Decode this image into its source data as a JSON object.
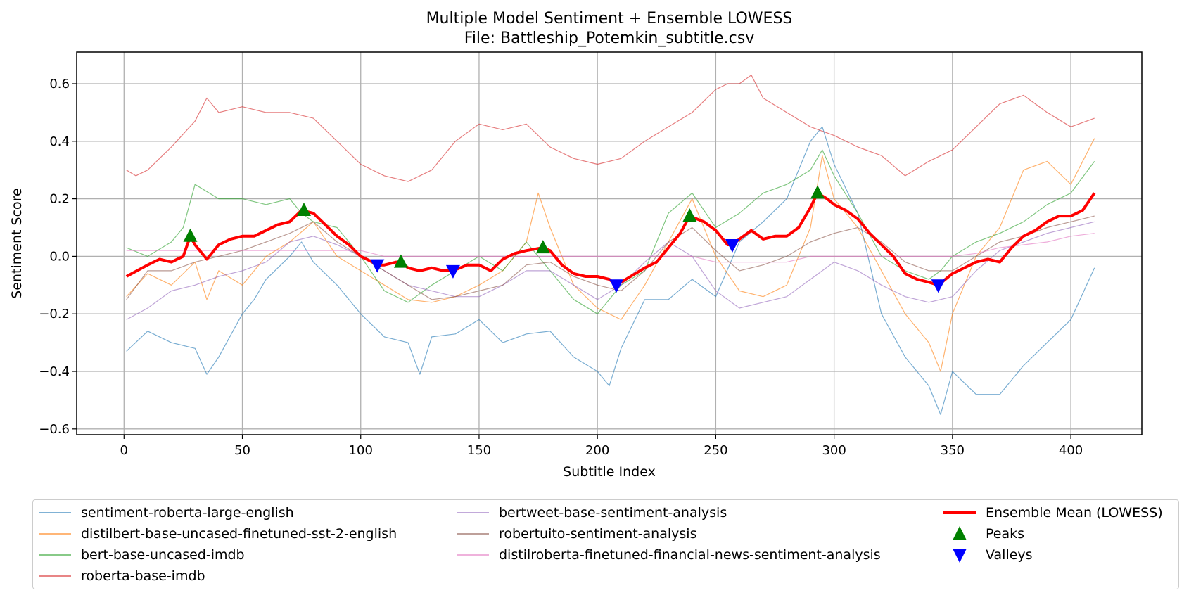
{
  "chart_data": {
    "type": "line",
    "title": "Multiple Model Sentiment + Ensemble LOWESS",
    "subtitle": "File: Battleship_Potemkin_subtitle.csv",
    "xlabel": "Subtitle Index",
    "ylabel": "Sentiment Score",
    "xlim": [
      -20,
      430
    ],
    "ylim": [
      -0.62,
      0.71
    ],
    "xticks": [
      "0",
      "50",
      "100",
      "150",
      "200",
      "250",
      "300",
      "350",
      "400"
    ],
    "yticks": [
      "−0.6",
      "−0.4",
      "−0.2",
      "0.0",
      "0.2",
      "0.4",
      "0.6"
    ],
    "grid": true,
    "legend_placement": "below",
    "series": [
      {
        "name": "sentiment-roberta-large-english",
        "color": "#1f77b4",
        "x": [
          1,
          10,
          20,
          30,
          35,
          40,
          50,
          55,
          60,
          70,
          75,
          80,
          90,
          100,
          110,
          120,
          125,
          130,
          140,
          150,
          160,
          170,
          180,
          190,
          200,
          205,
          210,
          220,
          230,
          240,
          250,
          260,
          270,
          280,
          290,
          295,
          300,
          310,
          320,
          330,
          340,
          345,
          350,
          360,
          370,
          380,
          390,
          400,
          410
        ],
        "y": [
          -0.33,
          -0.26,
          -0.3,
          -0.32,
          -0.41,
          -0.35,
          -0.2,
          -0.15,
          -0.08,
          0.0,
          0.05,
          -0.02,
          -0.1,
          -0.2,
          -0.28,
          -0.3,
          -0.41,
          -0.28,
          -0.27,
          -0.22,
          -0.3,
          -0.27,
          -0.26,
          -0.35,
          -0.4,
          -0.45,
          -0.32,
          -0.15,
          -0.15,
          -0.08,
          -0.14,
          0.05,
          0.12,
          0.2,
          0.4,
          0.45,
          0.32,
          0.15,
          -0.2,
          -0.35,
          -0.45,
          -0.55,
          -0.4,
          -0.48,
          -0.48,
          -0.38,
          -0.3,
          -0.22,
          -0.04
        ]
      },
      {
        "name": "distilbert-base-uncased-finetuned-sst-2-english",
        "color": "#ff7f0e",
        "x": [
          1,
          10,
          20,
          30,
          35,
          40,
          50,
          60,
          70,
          80,
          90,
          100,
          110,
          120,
          130,
          140,
          150,
          160,
          170,
          175,
          180,
          190,
          200,
          210,
          220,
          230,
          240,
          250,
          260,
          270,
          280,
          290,
          295,
          300,
          310,
          320,
          330,
          340,
          345,
          350,
          360,
          370,
          380,
          390,
          400,
          410
        ],
        "y": [
          -0.14,
          -0.06,
          -0.1,
          -0.02,
          -0.15,
          -0.05,
          -0.1,
          0.0,
          0.05,
          0.12,
          0.0,
          -0.05,
          -0.1,
          -0.15,
          -0.16,
          -0.14,
          -0.1,
          -0.05,
          0.05,
          0.22,
          0.1,
          -0.1,
          -0.18,
          -0.22,
          -0.1,
          0.05,
          0.2,
          0.0,
          -0.12,
          -0.14,
          -0.1,
          0.1,
          0.35,
          0.2,
          0.1,
          -0.05,
          -0.2,
          -0.3,
          -0.4,
          -0.2,
          0.0,
          0.1,
          0.3,
          0.33,
          0.25,
          0.41
        ]
      },
      {
        "name": "bert-base-uncased-imdb",
        "color": "#2ca02c",
        "x": [
          1,
          10,
          20,
          25,
          30,
          40,
          50,
          60,
          70,
          75,
          80,
          90,
          100,
          110,
          120,
          130,
          140,
          150,
          160,
          170,
          180,
          190,
          200,
          210,
          220,
          230,
          240,
          250,
          260,
          270,
          280,
          290,
          295,
          300,
          310,
          320,
          330,
          340,
          345,
          350,
          360,
          370,
          380,
          390,
          400,
          410
        ],
        "y": [
          0.03,
          0.0,
          0.05,
          0.1,
          0.25,
          0.2,
          0.2,
          0.18,
          0.2,
          0.15,
          0.12,
          0.1,
          0.0,
          -0.12,
          -0.16,
          -0.1,
          -0.05,
          0.0,
          -0.05,
          0.05,
          -0.05,
          -0.15,
          -0.2,
          -0.1,
          -0.05,
          0.15,
          0.22,
          0.1,
          0.15,
          0.22,
          0.25,
          0.3,
          0.37,
          0.28,
          0.15,
          0.0,
          -0.05,
          -0.08,
          -0.05,
          0.0,
          0.05,
          0.08,
          0.12,
          0.18,
          0.22,
          0.33
        ]
      },
      {
        "name": "roberta-base-imdb",
        "color": "#d62728",
        "x": [
          1,
          5,
          10,
          20,
          30,
          35,
          40,
          50,
          60,
          70,
          80,
          90,
          100,
          110,
          120,
          130,
          140,
          150,
          160,
          170,
          180,
          190,
          200,
          210,
          220,
          230,
          240,
          250,
          255,
          260,
          265,
          270,
          280,
          290,
          300,
          310,
          320,
          330,
          340,
          350,
          360,
          370,
          380,
          390,
          400,
          410
        ],
        "y": [
          0.3,
          0.28,
          0.3,
          0.38,
          0.47,
          0.55,
          0.5,
          0.52,
          0.5,
          0.5,
          0.48,
          0.4,
          0.32,
          0.28,
          0.26,
          0.3,
          0.4,
          0.46,
          0.44,
          0.46,
          0.38,
          0.34,
          0.32,
          0.34,
          0.4,
          0.45,
          0.5,
          0.58,
          0.6,
          0.6,
          0.63,
          0.55,
          0.5,
          0.45,
          0.42,
          0.38,
          0.35,
          0.28,
          0.33,
          0.37,
          0.45,
          0.53,
          0.56,
          0.5,
          0.45,
          0.48
        ]
      },
      {
        "name": "bertweet-base-sentiment-analysis",
        "color": "#9467bd",
        "x": [
          1,
          10,
          20,
          30,
          40,
          50,
          60,
          70,
          80,
          90,
          100,
          110,
          120,
          130,
          140,
          150,
          160,
          170,
          180,
          190,
          200,
          210,
          220,
          230,
          240,
          250,
          260,
          270,
          280,
          290,
          300,
          310,
          320,
          330,
          340,
          350,
          360,
          370,
          380,
          390,
          400,
          410
        ],
        "y": [
          -0.22,
          -0.18,
          -0.12,
          -0.1,
          -0.07,
          -0.05,
          -0.02,
          0.05,
          0.07,
          0.04,
          0.0,
          -0.05,
          -0.1,
          -0.12,
          -0.14,
          -0.14,
          -0.1,
          -0.05,
          -0.05,
          -0.1,
          -0.15,
          -0.1,
          -0.02,
          0.05,
          0.0,
          -0.12,
          -0.18,
          -0.16,
          -0.14,
          -0.08,
          -0.02,
          -0.05,
          -0.1,
          -0.14,
          -0.16,
          -0.14,
          -0.05,
          0.02,
          0.05,
          0.08,
          0.1,
          0.12
        ]
      },
      {
        "name": "robertuito-sentiment-analysis",
        "color": "#8c564b",
        "x": [
          1,
          10,
          20,
          30,
          40,
          50,
          60,
          70,
          80,
          90,
          100,
          110,
          120,
          130,
          140,
          150,
          160,
          170,
          180,
          190,
          200,
          210,
          220,
          230,
          240,
          250,
          260,
          270,
          280,
          290,
          300,
          310,
          320,
          330,
          340,
          350,
          360,
          370,
          380,
          390,
          400,
          410
        ],
        "y": [
          -0.15,
          -0.05,
          -0.05,
          -0.02,
          0.0,
          0.02,
          0.05,
          0.08,
          0.12,
          0.05,
          0.0,
          -0.05,
          -0.1,
          -0.15,
          -0.14,
          -0.12,
          -0.1,
          -0.03,
          -0.02,
          -0.07,
          -0.1,
          -0.12,
          -0.05,
          0.05,
          0.1,
          0.02,
          -0.05,
          -0.03,
          0.0,
          0.05,
          0.08,
          0.1,
          0.05,
          -0.02,
          -0.05,
          -0.05,
          0.0,
          0.05,
          0.07,
          0.1,
          0.12,
          0.14
        ]
      },
      {
        "name": "distilroberta-finetuned-financial-news-sentiment-analysis",
        "color": "#e377c2",
        "x": [
          1,
          10,
          20,
          30,
          40,
          50,
          60,
          70,
          80,
          90,
          100,
          110,
          120,
          130,
          140,
          150,
          160,
          170,
          180,
          190,
          200,
          210,
          220,
          230,
          240,
          250,
          260,
          270,
          280,
          290,
          300,
          310,
          320,
          330,
          340,
          350,
          360,
          370,
          380,
          390,
          400,
          410
        ],
        "y": [
          0.02,
          0.02,
          0.02,
          0.02,
          0.02,
          0.02,
          0.02,
          0.02,
          0.02,
          0.02,
          0.02,
          0.0,
          0.0,
          0.0,
          0.0,
          0.0,
          0.0,
          0.0,
          0.0,
          0.0,
          0.0,
          0.0,
          0.0,
          0.0,
          0.0,
          -0.02,
          -0.02,
          -0.02,
          -0.02,
          0.0,
          0.0,
          0.0,
          0.0,
          0.0,
          0.0,
          0.0,
          0.01,
          0.03,
          0.04,
          0.05,
          0.07,
          0.08
        ]
      },
      {
        "name": "Ensemble Mean (LOWESS)",
        "color": "#ff0000",
        "x": [
          1,
          10,
          15,
          20,
          25,
          28,
          30,
          35,
          40,
          45,
          50,
          55,
          60,
          65,
          70,
          75,
          80,
          85,
          90,
          95,
          100,
          105,
          107,
          110,
          115,
          117,
          120,
          125,
          130,
          135,
          139,
          145,
          150,
          155,
          160,
          165,
          170,
          177,
          180,
          185,
          190,
          195,
          200,
          205,
          208,
          212,
          220,
          225,
          230,
          235,
          239,
          245,
          250,
          255,
          257,
          260,
          265,
          270,
          275,
          280,
          285,
          290,
          293,
          297,
          300,
          305,
          310,
          315,
          320,
          325,
          330,
          335,
          340,
          344,
          350,
          355,
          360,
          365,
          370,
          375,
          380,
          385,
          390,
          395,
          400,
          405,
          410
        ],
        "y": [
          -0.07,
          -0.03,
          -0.01,
          -0.02,
          0.0,
          0.07,
          0.04,
          -0.01,
          0.04,
          0.06,
          0.07,
          0.07,
          0.09,
          0.11,
          0.12,
          0.16,
          0.15,
          0.11,
          0.07,
          0.04,
          0.0,
          -0.02,
          -0.03,
          -0.03,
          -0.02,
          -0.02,
          -0.04,
          -0.05,
          -0.04,
          -0.05,
          -0.05,
          -0.03,
          -0.03,
          -0.05,
          -0.01,
          0.01,
          0.02,
          0.03,
          0.02,
          -0.03,
          -0.06,
          -0.07,
          -0.07,
          -0.08,
          -0.1,
          -0.08,
          -0.04,
          -0.02,
          0.03,
          0.08,
          0.14,
          0.12,
          0.09,
          0.04,
          0.04,
          0.06,
          0.09,
          0.06,
          0.07,
          0.07,
          0.1,
          0.17,
          0.22,
          0.2,
          0.18,
          0.16,
          0.13,
          0.08,
          0.04,
          0.0,
          -0.06,
          -0.08,
          -0.09,
          -0.1,
          -0.06,
          -0.04,
          -0.02,
          -0.01,
          -0.02,
          0.03,
          0.07,
          0.09,
          0.12,
          0.14,
          0.14,
          0.16,
          0.22
        ]
      }
    ],
    "peaks": [
      [
        28,
        0.07
      ],
      [
        76,
        0.16
      ],
      [
        117,
        -0.02
      ],
      [
        177,
        0.03
      ],
      [
        239,
        0.14
      ],
      [
        293,
        0.22
      ]
    ],
    "valleys": [
      [
        107,
        -0.03
      ],
      [
        139,
        -0.05
      ],
      [
        208,
        -0.1
      ],
      [
        257,
        0.04
      ],
      [
        344,
        -0.1
      ]
    ],
    "legend": {
      "model_entries": [
        "sentiment-roberta-large-english",
        "distilbert-base-uncased-finetuned-sst-2-english",
        "bert-base-uncased-imdb",
        "roberta-base-imdb",
        "bertweet-base-sentiment-analysis",
        "robertuito-sentiment-analysis",
        "distilroberta-finetuned-financial-news-sentiment-analysis"
      ],
      "ensemble_label": "Ensemble Mean (LOWESS)",
      "peaks_label": "Peaks",
      "valleys_label": "Valleys",
      "peak_color": "#008000",
      "valley_color": "#0000ff"
    }
  }
}
